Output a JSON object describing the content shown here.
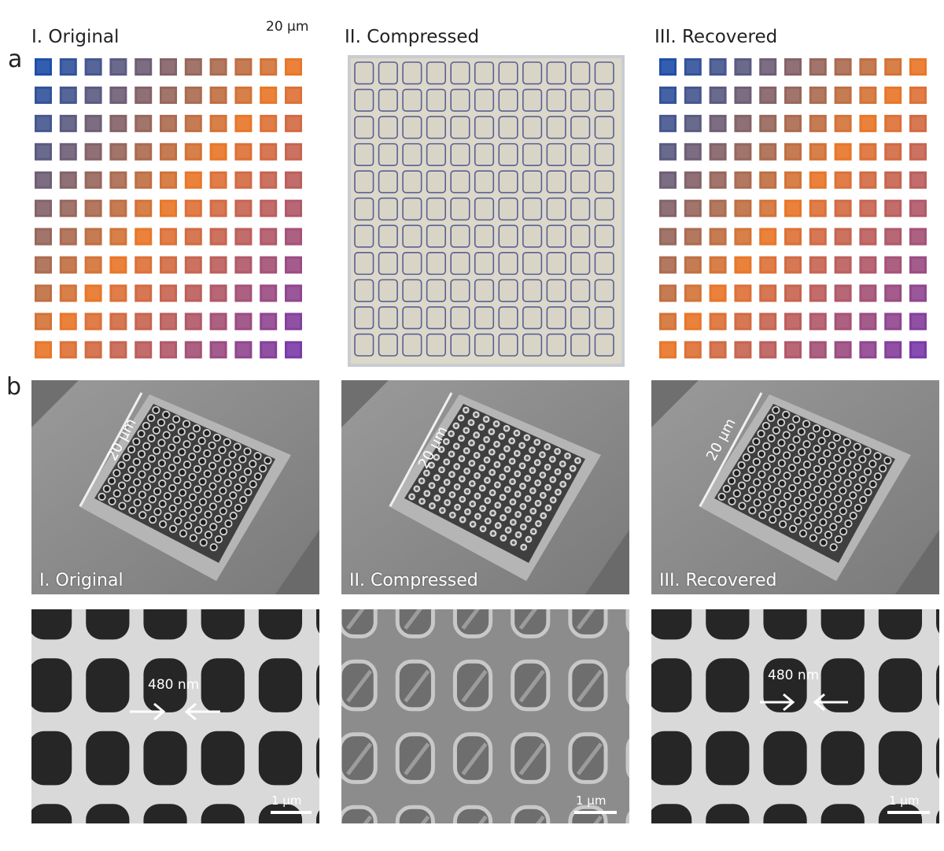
{
  "panel_a": {
    "letter": "a",
    "scale_label": "20 μm",
    "columns": [
      {
        "title": "I. Original",
        "state": "colored"
      },
      {
        "title": "II. Compressed",
        "state": "compressed"
      },
      {
        "title": "III. Recovered",
        "state": "colored"
      }
    ]
  },
  "panel_b": {
    "letter": "b",
    "overview": [
      {
        "label": "I. Original",
        "scale_label": "20 μm"
      },
      {
        "label": "II. Compressed",
        "scale_label": "20 μm"
      },
      {
        "label": "III. Recovered",
        "scale_label": "20 μm"
      }
    ],
    "closeup": [
      {
        "scale_label": "1 μm",
        "measure_label": "480 nm"
      },
      {
        "scale_label": "1 μm"
      },
      {
        "scale_label": "1 μm",
        "measure_label": "480 nm"
      }
    ]
  },
  "colors": {
    "grid_start": "#1f4fa8",
    "grid_mid": "#e8772a",
    "grid_end": "#7a3aa8",
    "compressed_fill": "#d9d5c6",
    "compressed_outline": "#5a5f94",
    "sem_bg": "#8a8a8a"
  }
}
